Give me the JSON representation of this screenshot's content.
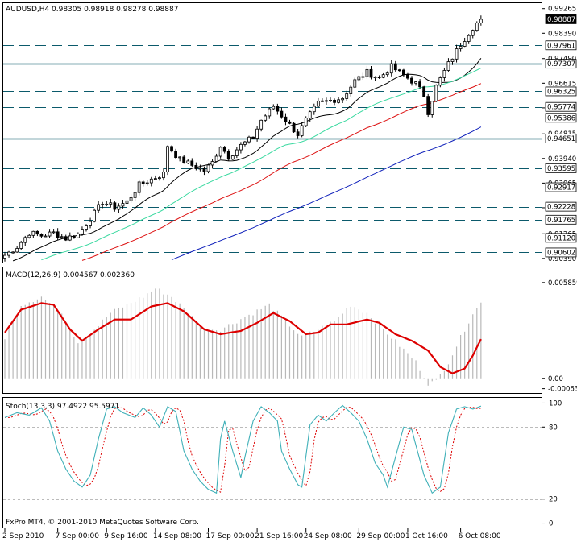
{
  "header": {
    "symbol_tf": "AUDUSD,H4",
    "ohlc": "0.98305 0.98918 0.98278 0.98887"
  },
  "macd": {
    "label": "MACD(12,26,9) 0.004567 0.002360"
  },
  "stoch": {
    "label": "Stoch(13,3,3) 97.4922 95.5971"
  },
  "copyright": "FxPro MT4, © 2001-2010 MetaQuotes Software Corp.",
  "price_axis": {
    "plain": [
      {
        "v": 0.99265,
        "t": "0.99265"
      },
      {
        "v": 0.9839,
        "t": "0.98390"
      },
      {
        "v": 0.9749,
        "t": "0.97490"
      },
      {
        "v": 0.96615,
        "t": "0.96615"
      },
      {
        "v": 0.9574,
        "t": "0.95740"
      },
      {
        "v": 0.94815,
        "t": "0.94815"
      },
      {
        "v": 0.9394,
        "t": "0.93940"
      },
      {
        "v": 0.93065,
        "t": "0.93065"
      },
      {
        "v": 0.9219,
        "t": "0.92190"
      },
      {
        "v": 0.91265,
        "t": "0.91265"
      },
      {
        "v": 0.9039,
        "t": "0.90390"
      }
    ],
    "boxed": [
      {
        "v": 0.98887,
        "t": "0.98887",
        "kind": "current"
      },
      {
        "v": 0.97961,
        "t": "0.97961",
        "kind": "dash"
      },
      {
        "v": 0.97307,
        "t": "0.97307",
        "kind": "solid"
      },
      {
        "v": 0.96325,
        "t": "0.96325",
        "kind": "dash"
      },
      {
        "v": 0.95774,
        "t": "0.95774",
        "kind": "dash"
      },
      {
        "v": 0.95386,
        "t": "0.95386",
        "kind": "dash"
      },
      {
        "v": 0.94651,
        "t": "0.94651",
        "kind": "solid"
      },
      {
        "v": 0.93595,
        "t": "0.93595",
        "kind": "dash"
      },
      {
        "v": 0.92917,
        "t": "0.92917",
        "kind": "dash"
      },
      {
        "v": 0.92228,
        "t": "0.92228",
        "kind": "dash"
      },
      {
        "v": 0.91765,
        "t": "0.91765",
        "kind": "dash"
      },
      {
        "v": 0.9112,
        "t": "0.91120",
        "kind": "dash"
      },
      {
        "v": 0.90602,
        "t": "0.90602",
        "kind": "dash"
      }
    ],
    "range": [
      0.903,
      0.994
    ]
  },
  "macd_axis": {
    "ticks": [
      {
        "v": 0.005859,
        "t": "0.005859"
      },
      {
        "v": 0.0,
        "t": "0.00"
      },
      {
        "v": -0.000634,
        "t": "-0.00063"
      }
    ],
    "range": [
      -0.0008,
      0.006
    ]
  },
  "stoch_axis": {
    "ticks": [
      {
        "v": 100,
        "t": "100"
      },
      {
        "v": 80,
        "t": "80"
      },
      {
        "v": 20,
        "t": "20"
      },
      {
        "v": 0,
        "t": "0"
      }
    ],
    "range": [
      -3,
      103
    ]
  },
  "time_axis": [
    {
      "i": 0,
      "t": "2 Sep 2010"
    },
    {
      "i": 13,
      "t": "7 Sep 00:00"
    },
    {
      "i": 25,
      "t": "9 Sep 16:00"
    },
    {
      "i": 37,
      "t": "14 Sep 08:00"
    },
    {
      "i": 50,
      "t": "17 Sep 00:00"
    },
    {
      "i": 62,
      "t": "21 Sep 16:00"
    },
    {
      "i": 74,
      "t": "24 Sep 08:00"
    },
    {
      "i": 87,
      "t": "29 Sep 00:00"
    },
    {
      "i": 99,
      "t": "1 Oct 16:00"
    },
    {
      "i": 112,
      "t": "6 Oct 08:00"
    }
  ],
  "colors": {
    "bg": "#ffffff",
    "grid_dash": "#0b5a6b",
    "solid_level": "#0b5a6b",
    "candle": "#000000",
    "ma_fast": "#000000",
    "ma_mid": "#3ad9a0",
    "ma_slow": "#dd1111",
    "ma_long": "#1122bb",
    "macd_hist": "#b8b8b8",
    "macd_signal": "#dd0000",
    "stoch_main": "#3fb0b8",
    "stoch_signal": "#dd0000"
  },
  "chart_data": {
    "type": "line",
    "price_anchors": [
      [
        0,
        0.905
      ],
      [
        3,
        0.908
      ],
      [
        6,
        0.913
      ],
      [
        9,
        0.912
      ],
      [
        12,
        0.913
      ],
      [
        15,
        0.911
      ],
      [
        18,
        0.9125
      ],
      [
        21,
        0.918
      ],
      [
        24,
        0.924
      ],
      [
        27,
        0.922
      ],
      [
        30,
        0.924
      ],
      [
        33,
        0.93
      ],
      [
        36,
        0.932
      ],
      [
        39,
        0.934
      ],
      [
        40,
        0.944
      ],
      [
        43,
        0.939
      ],
      [
        46,
        0.937
      ],
      [
        49,
        0.935
      ],
      [
        51,
        0.938
      ],
      [
        53,
        0.944
      ],
      [
        55,
        0.94
      ],
      [
        58,
        0.944
      ],
      [
        61,
        0.947
      ],
      [
        63,
        0.953
      ],
      [
        66,
        0.958
      ],
      [
        69,
        0.953
      ],
      [
        72,
        0.948
      ],
      [
        74,
        0.953
      ],
      [
        77,
        0.959
      ],
      [
        80,
        0.96
      ],
      [
        83,
        0.961
      ],
      [
        86,
        0.967
      ],
      [
        89,
        0.97
      ],
      [
        92,
        0.968
      ],
      [
        95,
        0.972
      ],
      [
        98,
        0.969
      ],
      [
        101,
        0.966
      ],
      [
        103,
        0.962
      ],
      [
        104,
        0.956
      ],
      [
        106,
        0.965
      ],
      [
        109,
        0.973
      ],
      [
        112,
        0.98
      ],
      [
        115,
        0.986
      ],
      [
        117,
        0.9889
      ]
    ],
    "macd_hist_anchors": [
      [
        0,
        0.0025
      ],
      [
        4,
        0.0045
      ],
      [
        9,
        0.005
      ],
      [
        14,
        0.004
      ],
      [
        18,
        0.0022
      ],
      [
        22,
        0.003
      ],
      [
        26,
        0.004
      ],
      [
        30,
        0.0045
      ],
      [
        34,
        0.005
      ],
      [
        37,
        0.0055
      ],
      [
        41,
        0.005
      ],
      [
        45,
        0.004
      ],
      [
        49,
        0.003
      ],
      [
        53,
        0.003
      ],
      [
        57,
        0.0035
      ],
      [
        61,
        0.004
      ],
      [
        65,
        0.0045
      ],
      [
        69,
        0.0035
      ],
      [
        73,
        0.0025
      ],
      [
        77,
        0.003
      ],
      [
        81,
        0.0035
      ],
      [
        85,
        0.0045
      ],
      [
        89,
        0.004
      ],
      [
        93,
        0.003
      ],
      [
        97,
        0.002
      ],
      [
        101,
        0.001
      ],
      [
        104,
        -0.0003
      ],
      [
        106,
        -0.0002
      ],
      [
        109,
        0.001
      ],
      [
        112,
        0.0025
      ],
      [
        115,
        0.004
      ],
      [
        117,
        0.0046
      ]
    ],
    "macd_signal_anchors": [
      [
        0,
        0.0028
      ],
      [
        4,
        0.0042
      ],
      [
        9,
        0.0046
      ],
      [
        12,
        0.0045
      ],
      [
        16,
        0.003
      ],
      [
        19,
        0.0023
      ],
      [
        23,
        0.003
      ],
      [
        27,
        0.0036
      ],
      [
        31,
        0.0036
      ],
      [
        36,
        0.0044
      ],
      [
        40,
        0.0046
      ],
      [
        44,
        0.0041
      ],
      [
        49,
        0.003
      ],
      [
        53,
        0.0027
      ],
      [
        58,
        0.0029
      ],
      [
        62,
        0.0034
      ],
      [
        66,
        0.004
      ],
      [
        70,
        0.0035
      ],
      [
        74,
        0.0027
      ],
      [
        77,
        0.0028
      ],
      [
        80,
        0.0033
      ],
      [
        84,
        0.0033
      ],
      [
        89,
        0.0036
      ],
      [
        92,
        0.0034
      ],
      [
        96,
        0.0027
      ],
      [
        100,
        0.0023
      ],
      [
        104,
        0.0017
      ],
      [
        107,
        0.0007
      ],
      [
        110,
        0.0003
      ],
      [
        113,
        0.0006
      ],
      [
        115,
        0.0014
      ],
      [
        117,
        0.0024
      ]
    ],
    "stoch_main_anchors": [
      [
        0,
        88
      ],
      [
        3,
        92
      ],
      [
        6,
        90
      ],
      [
        9,
        96
      ],
      [
        11,
        85
      ],
      [
        13,
        60
      ],
      [
        15,
        45
      ],
      [
        17,
        35
      ],
      [
        19,
        30
      ],
      [
        21,
        40
      ],
      [
        23,
        70
      ],
      [
        25,
        95
      ],
      [
        27,
        97
      ],
      [
        29,
        92
      ],
      [
        32,
        88
      ],
      [
        34,
        96
      ],
      [
        36,
        90
      ],
      [
        38,
        80
      ],
      [
        40,
        97
      ],
      [
        42,
        93
      ],
      [
        44,
        60
      ],
      [
        46,
        45
      ],
      [
        48,
        35
      ],
      [
        50,
        28
      ],
      [
        52,
        25
      ],
      [
        53,
        70
      ],
      [
        54,
        85
      ],
      [
        56,
        60
      ],
      [
        58,
        38
      ],
      [
        59,
        55
      ],
      [
        61,
        85
      ],
      [
        63,
        97
      ],
      [
        65,
        92
      ],
      [
        67,
        85
      ],
      [
        68,
        60
      ],
      [
        70,
        45
      ],
      [
        72,
        32
      ],
      [
        73,
        30
      ],
      [
        75,
        82
      ],
      [
        77,
        90
      ],
      [
        79,
        85
      ],
      [
        81,
        92
      ],
      [
        83,
        98
      ],
      [
        85,
        92
      ],
      [
        87,
        85
      ],
      [
        89,
        70
      ],
      [
        91,
        50
      ],
      [
        93,
        40
      ],
      [
        94,
        30
      ],
      [
        96,
        55
      ],
      [
        98,
        80
      ],
      [
        100,
        78
      ],
      [
        101,
        65
      ],
      [
        103,
        40
      ],
      [
        105,
        25
      ],
      [
        107,
        30
      ],
      [
        109,
        75
      ],
      [
        111,
        95
      ],
      [
        113,
        97
      ],
      [
        115,
        95
      ],
      [
        117,
        97.5
      ]
    ],
    "stoch_lag": 1.5,
    "ma_periods": {
      "ma_fast": 14,
      "ma_mid": 30,
      "ma_slow": 50,
      "ma_long": 100
    }
  }
}
